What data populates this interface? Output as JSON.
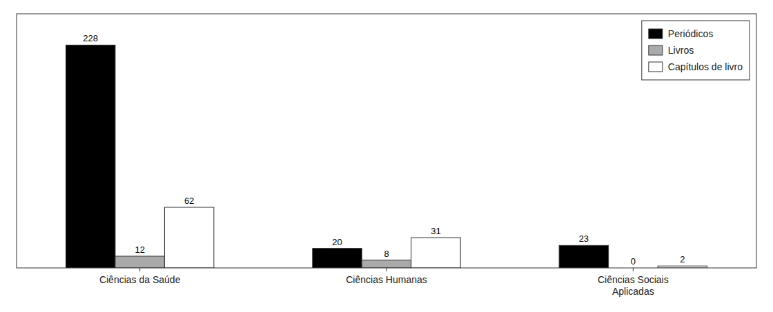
{
  "chart_data": {
    "type": "bar",
    "categories": [
      "Ciências da Saúde",
      "Ciências Humanas",
      "Ciências Sociais\nAplicadas"
    ],
    "series": [
      {
        "name": "Periódicos",
        "color": "#000000",
        "values": [
          228,
          20,
          23
        ]
      },
      {
        "name": "Livros",
        "color": "#aaaaaa",
        "values": [
          12,
          8,
          0
        ]
      },
      {
        "name": "Capítulos de livro",
        "color": "#ffffff",
        "values": [
          62,
          31,
          2
        ]
      }
    ],
    "ylim": [
      0,
      260
    ],
    "grid": false,
    "legend": "upper right",
    "data_labels": true,
    "tick_labels": "x"
  }
}
